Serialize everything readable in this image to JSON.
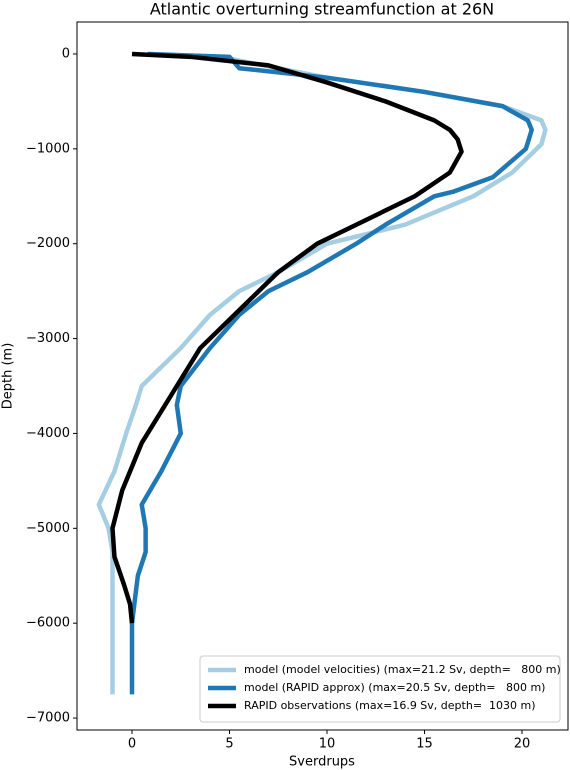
{
  "chart_data": {
    "type": "line",
    "title": "Atlantic overturning streamfunction at 26N",
    "x_label": "Sverdrups",
    "y_label": "Depth (m)",
    "xlim": [
      -2.82,
      22.36
    ],
    "ylim": [
      -7126,
      337
    ],
    "xticks": [
      0,
      5,
      10,
      15,
      20
    ],
    "yticks": [
      0,
      {
        "value": -1000,
        "label": "−1000"
      },
      {
        "value": -2000,
        "label": "−2000"
      },
      {
        "value": -3000,
        "label": "−3000"
      },
      {
        "value": -4000,
        "label": "−4000"
      },
      {
        "value": -5000,
        "label": "−5000"
      },
      {
        "value": -6000,
        "label": "−6000"
      },
      {
        "value": -7000,
        "label": "−7000"
      }
    ],
    "legend": "lower right",
    "series": [
      {
        "name": "model (model velocities) (max=21.2 Sv, depth=   800 m)",
        "color": "#a6cee3",
        "x": [
          1,
          5,
          10,
          15,
          19,
          21,
          21.2,
          21,
          19.5,
          17.5,
          14,
          10,
          7.5,
          5.5,
          4,
          2.5,
          0.5,
          0.2,
          -0.3,
          -0.9,
          -1.7,
          -1.2,
          -1,
          -1,
          -1,
          -1
        ],
        "values": [
          0,
          -50,
          -250,
          -400,
          -550,
          -700,
          -800,
          -950,
          -1250,
          -1500,
          -1800,
          -2000,
          -2300,
          -2500,
          -2750,
          -3100,
          -3500,
          -3700,
          -4000,
          -4400,
          -4750,
          -5000,
          -5250,
          -5500,
          -6000,
          -6750
        ]
      },
      {
        "name": "model (RAPID approx) (max=20.5 Sv, depth=   800 m)",
        "color": "#1f78b4",
        "x": [
          0.8,
          5,
          5.5,
          10,
          15,
          19,
          20.3,
          20.5,
          20.2,
          18.5,
          16.5,
          15.5,
          13,
          11.5,
          9,
          7,
          5.5,
          4,
          2.5,
          2.3,
          2.5,
          1.5,
          0.5,
          0.7,
          0.7,
          0.3,
          0,
          0
        ],
        "values": [
          0,
          -30,
          -150,
          -250,
          -400,
          -550,
          -700,
          -800,
          -1000,
          -1300,
          -1450,
          -1500,
          -1800,
          -2000,
          -2300,
          -2500,
          -2750,
          -3100,
          -3500,
          -3700,
          -4000,
          -4400,
          -4750,
          -5000,
          -5250,
          -5500,
          -6000,
          -6750
        ]
      },
      {
        "name": "RAPID observations (max=16.9 Sv, depth=  1030 m)",
        "color": "#000000",
        "x": [
          0,
          3,
          7,
          10,
          13,
          15.5,
          16.3,
          16.7,
          16.9,
          16.3,
          14.5,
          11.5,
          9.5,
          7.5,
          5.5,
          3.5,
          2,
          0.5,
          -0.5,
          -1,
          -0.9,
          -0.4,
          -0.1,
          0
        ],
        "values": [
          0,
          -30,
          -120,
          -300,
          -500,
          -700,
          -800,
          -900,
          -1030,
          -1250,
          -1500,
          -1800,
          -2000,
          -2300,
          -2700,
          -3100,
          -3600,
          -4100,
          -4600,
          -5000,
          -5300,
          -5600,
          -5800,
          -6000
        ]
      }
    ]
  }
}
